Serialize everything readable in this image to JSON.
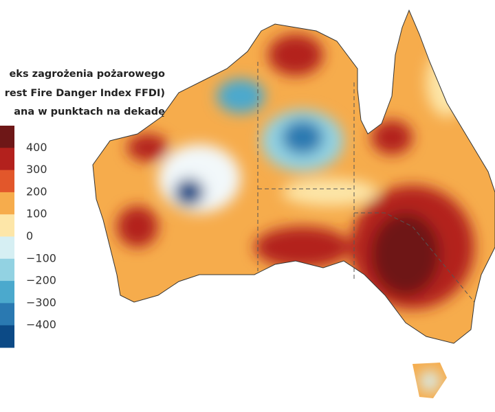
{
  "title_lines": [
    "eks zagrożenia pożarowego",
    "rest Fire Danger Index FFDI)",
    "ana w punktach na dekadę"
  ],
  "legend": {
    "colors": [
      "#6e1717",
      "#b3211d",
      "#e2572b",
      "#f6ac4c",
      "#fde6a8",
      "#d6eff3",
      "#92d2e2",
      "#4ba9cd",
      "#2a79b1",
      "#0c4a86"
    ],
    "ticks": [
      {
        "value": 400,
        "label": "400"
      },
      {
        "value": 300,
        "label": "300"
      },
      {
        "value": 200,
        "label": "200"
      },
      {
        "value": 100,
        "label": "100"
      },
      {
        "value": 0,
        "label": "0"
      },
      {
        "value": -100,
        "label": "−100"
      },
      {
        "value": -200,
        "label": "−200"
      },
      {
        "value": -300,
        "label": "−300"
      },
      {
        "value": -400,
        "label": "−400"
      }
    ]
  }
}
